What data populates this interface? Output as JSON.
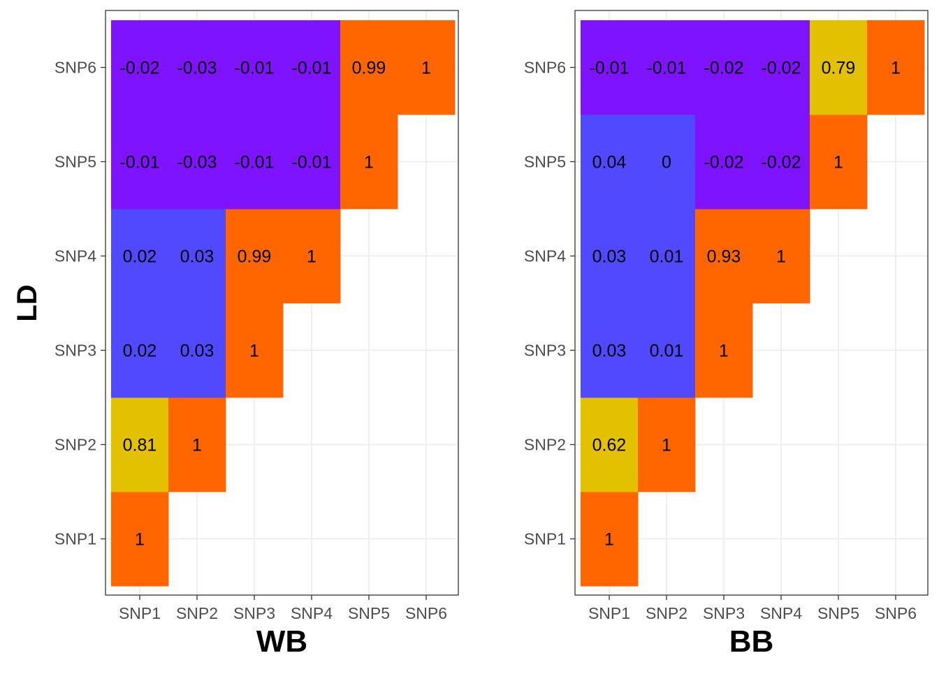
{
  "ylabel": "LD",
  "colors": {
    "negative": "#7f13ff",
    "low": "#5049ff",
    "moderate": "#e3c000",
    "high": "#ff6600",
    "grid": "#ebebeb",
    "panel_border": "#333333"
  },
  "chart_data": [
    {
      "type": "heatmap",
      "title": "",
      "xlabel": "WB",
      "ylabel": "LD",
      "x_categories": [
        "SNP1",
        "SNP2",
        "SNP3",
        "SNP4",
        "SNP5",
        "SNP6"
      ],
      "y_categories": [
        "SNP1",
        "SNP2",
        "SNP3",
        "SNP4",
        "SNP5",
        "SNP6"
      ],
      "grid": true,
      "cells": [
        {
          "x": "SNP1",
          "y": "SNP1",
          "value": 1,
          "label": "1"
        },
        {
          "x": "SNP1",
          "y": "SNP2",
          "value": 0.81,
          "label": "0.81"
        },
        {
          "x": "SNP2",
          "y": "SNP2",
          "value": 1,
          "label": "1"
        },
        {
          "x": "SNP1",
          "y": "SNP3",
          "value": 0.02,
          "label": "0.02"
        },
        {
          "x": "SNP2",
          "y": "SNP3",
          "value": 0.03,
          "label": "0.03"
        },
        {
          "x": "SNP3",
          "y": "SNP3",
          "value": 1,
          "label": "1"
        },
        {
          "x": "SNP1",
          "y": "SNP4",
          "value": 0.02,
          "label": "0.02"
        },
        {
          "x": "SNP2",
          "y": "SNP4",
          "value": 0.03,
          "label": "0.03"
        },
        {
          "x": "SNP3",
          "y": "SNP4",
          "value": 0.99,
          "label": "0.99"
        },
        {
          "x": "SNP4",
          "y": "SNP4",
          "value": 1,
          "label": "1"
        },
        {
          "x": "SNP1",
          "y": "SNP5",
          "value": -0.01,
          "label": "-0.01"
        },
        {
          "x": "SNP2",
          "y": "SNP5",
          "value": -0.03,
          "label": "-0.03"
        },
        {
          "x": "SNP3",
          "y": "SNP5",
          "value": -0.01,
          "label": "-0.01"
        },
        {
          "x": "SNP4",
          "y": "SNP5",
          "value": -0.01,
          "label": "-0.01"
        },
        {
          "x": "SNP5",
          "y": "SNP5",
          "value": 1,
          "label": "1"
        },
        {
          "x": "SNP1",
          "y": "SNP6",
          "value": -0.02,
          "label": "-0.02"
        },
        {
          "x": "SNP2",
          "y": "SNP6",
          "value": -0.03,
          "label": "-0.03"
        },
        {
          "x": "SNP3",
          "y": "SNP6",
          "value": -0.01,
          "label": "-0.01"
        },
        {
          "x": "SNP4",
          "y": "SNP6",
          "value": -0.01,
          "label": "-0.01"
        },
        {
          "x": "SNP5",
          "y": "SNP6",
          "value": 0.99,
          "label": "0.99"
        },
        {
          "x": "SNP6",
          "y": "SNP6",
          "value": 1,
          "label": "1"
        }
      ]
    },
    {
      "type": "heatmap",
      "title": "",
      "xlabel": "BB",
      "ylabel": "",
      "x_categories": [
        "SNP1",
        "SNP2",
        "SNP3",
        "SNP4",
        "SNP5",
        "SNP6"
      ],
      "y_categories": [
        "SNP1",
        "SNP2",
        "SNP3",
        "SNP4",
        "SNP5",
        "SNP6"
      ],
      "grid": true,
      "cells": [
        {
          "x": "SNP1",
          "y": "SNP1",
          "value": 1,
          "label": "1"
        },
        {
          "x": "SNP1",
          "y": "SNP2",
          "value": 0.62,
          "label": "0.62"
        },
        {
          "x": "SNP2",
          "y": "SNP2",
          "value": 1,
          "label": "1"
        },
        {
          "x": "SNP1",
          "y": "SNP3",
          "value": 0.03,
          "label": "0.03"
        },
        {
          "x": "SNP2",
          "y": "SNP3",
          "value": 0.01,
          "label": "0.01"
        },
        {
          "x": "SNP3",
          "y": "SNP3",
          "value": 1,
          "label": "1"
        },
        {
          "x": "SNP1",
          "y": "SNP4",
          "value": 0.03,
          "label": "0.03"
        },
        {
          "x": "SNP2",
          "y": "SNP4",
          "value": 0.01,
          "label": "0.01"
        },
        {
          "x": "SNP3",
          "y": "SNP4",
          "value": 0.93,
          "label": "0.93"
        },
        {
          "x": "SNP4",
          "y": "SNP4",
          "value": 1,
          "label": "1"
        },
        {
          "x": "SNP1",
          "y": "SNP5",
          "value": 0.04,
          "label": "0.04"
        },
        {
          "x": "SNP2",
          "y": "SNP5",
          "value": 0,
          "label": "0"
        },
        {
          "x": "SNP3",
          "y": "SNP5",
          "value": -0.02,
          "label": "-0.02"
        },
        {
          "x": "SNP4",
          "y": "SNP5",
          "value": -0.02,
          "label": "-0.02"
        },
        {
          "x": "SNP5",
          "y": "SNP5",
          "value": 1,
          "label": "1"
        },
        {
          "x": "SNP1",
          "y": "SNP6",
          "value": -0.01,
          "label": "-0.01"
        },
        {
          "x": "SNP2",
          "y": "SNP6",
          "value": -0.01,
          "label": "-0.01"
        },
        {
          "x": "SNP3",
          "y": "SNP6",
          "value": -0.02,
          "label": "-0.02"
        },
        {
          "x": "SNP4",
          "y": "SNP6",
          "value": -0.02,
          "label": "-0.02"
        },
        {
          "x": "SNP5",
          "y": "SNP6",
          "value": 0.79,
          "label": "0.79"
        },
        {
          "x": "SNP6",
          "y": "SNP6",
          "value": 1,
          "label": "1"
        }
      ]
    }
  ]
}
